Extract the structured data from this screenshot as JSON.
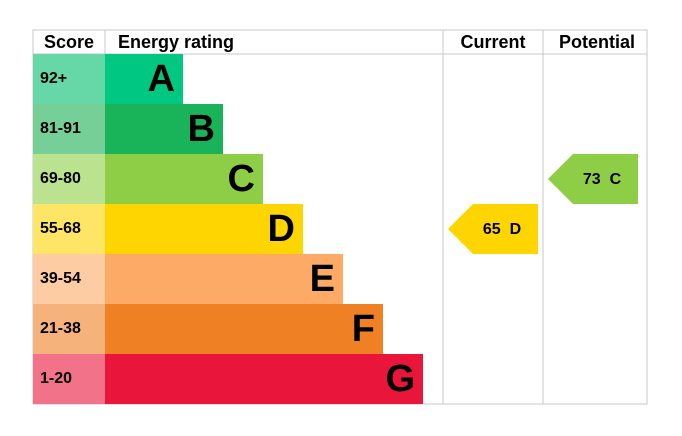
{
  "header": {
    "score": "Score",
    "rating": "Energy rating",
    "current": "Current",
    "potential": "Potential"
  },
  "bands": [
    {
      "score": "92+",
      "letter": "A",
      "color": "#00c781",
      "light": "#66d7a6"
    },
    {
      "score": "81-91",
      "letter": "B",
      "color": "#19b459",
      "light": "#75cf96"
    },
    {
      "score": "69-80",
      "letter": "C",
      "color": "#8dce46",
      "light": "#bbe28f"
    },
    {
      "score": "55-68",
      "letter": "D",
      "color": "#ffd500",
      "light": "#ffe566"
    },
    {
      "score": "39-54",
      "letter": "E",
      "color": "#fcaa65",
      "light": "#fdcca3"
    },
    {
      "score": "21-38",
      "letter": "F",
      "color": "#ef8023",
      "light": "#f5b37b"
    },
    {
      "score": "1-20",
      "letter": "G",
      "color": "#e9153b",
      "light": "#f27389"
    }
  ],
  "current": {
    "value": 65,
    "letter": "D"
  },
  "potential": {
    "value": 73,
    "letter": "C"
  }
}
